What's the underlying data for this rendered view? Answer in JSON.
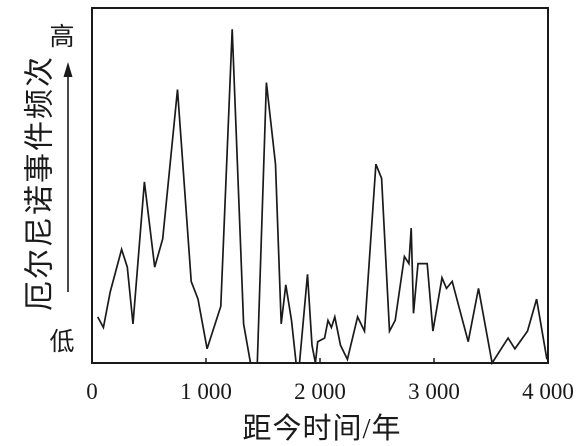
{
  "chart_data": {
    "type": "line",
    "xlabel": "距今时间/年",
    "ylabel": "厄尔尼诺事件频次",
    "y_high_label": "高",
    "y_low_label": "低",
    "xlim": [
      0,
      4000
    ],
    "ylim": [
      0,
      100
    ],
    "xticks": [
      0,
      1000,
      2000,
      3000,
      4000
    ],
    "xtick_labels": [
      "0",
      "1 000",
      "2 000",
      "3 000",
      "4 000"
    ],
    "grid": false,
    "legend": false,
    "series": [
      {
        "x": [
          50,
          100,
          160,
          260,
          310,
          360,
          460,
          550,
          620,
          750,
          870,
          930,
          1010,
          1130,
          1230,
          1330,
          1390,
          1450,
          1530,
          1610,
          1660,
          1700,
          1750,
          1790,
          1820,
          1890,
          1930,
          1960,
          1980,
          2040,
          2070,
          2100,
          2130,
          2180,
          2240,
          2330,
          2390,
          2490,
          2540,
          2610,
          2660,
          2740,
          2780,
          2800,
          2820,
          2860,
          2940,
          2990,
          3070,
          3110,
          3160,
          3300,
          3390,
          3510,
          3650,
          3710,
          3820,
          3900,
          3990
        ],
        "y": [
          13,
          10,
          20,
          32,
          27,
          11,
          51,
          27,
          35,
          77,
          23,
          18,
          4,
          16,
          94,
          11,
          0,
          0,
          79,
          56,
          11,
          22,
          12,
          0,
          0,
          25,
          5,
          0,
          6,
          7,
          12,
          10,
          13,
          5,
          1,
          13,
          9,
          56,
          52,
          9,
          12,
          30,
          28,
          38,
          14,
          28,
          28,
          9,
          24,
          21,
          23,
          6,
          21,
          0,
          7,
          4,
          9,
          18,
          1
        ]
      }
    ]
  },
  "colors": {
    "line": "#1a1a1a",
    "frame": "#1a1a1a",
    "background": "#ffffff"
  }
}
